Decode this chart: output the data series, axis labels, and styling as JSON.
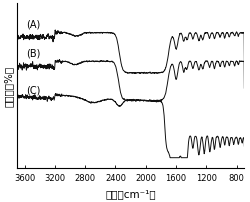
{
  "title": "",
  "xlabel": "波数（cm⁻¹）",
  "ylabel": "透光率（%）",
  "xlim": [
    3700,
    700
  ],
  "background_color": "#ffffff",
  "labels": [
    "(A)",
    "(B)",
    "(C)"
  ],
  "curve_color": "#111111",
  "linewidth": 0.7,
  "figsize": [
    2.5,
    2.03
  ],
  "dpi": 100,
  "xticks": [
    3600,
    3200,
    2800,
    2400,
    2000,
    1600,
    1200,
    800
  ],
  "xlabel_fontsize": 7.5,
  "ylabel_fontsize": 7.5,
  "tick_fontsize": 6,
  "label_fontsize": 7
}
